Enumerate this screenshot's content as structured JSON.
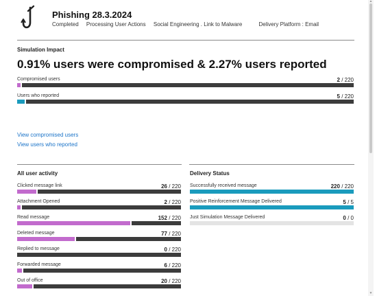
{
  "header": {
    "title": "Phishing 28.3.2024",
    "meta": [
      "Completed",
      "Processing User Actions",
      "Social Engineering . Link to Malware",
      "Delivery Platform : Email"
    ]
  },
  "impact": {
    "section_title": "Simulation Impact",
    "headline": "0.91% users were compromised & 2.27% users reported",
    "rows": [
      {
        "label": "Compromised users",
        "value": 2,
        "total": 220,
        "count": "2 / 220",
        "color": "#c26bcd"
      },
      {
        "label": "Users who reported",
        "value": 5,
        "total": 220,
        "count": "5 / 220",
        "color": "#1a9bbd"
      }
    ],
    "links": [
      "View compromised users",
      "View users who reported"
    ]
  },
  "activity": {
    "section_title": "All user activity",
    "rows": [
      {
        "label": "Clicked message link",
        "value": 26,
        "total": 220,
        "count": "26 / 220",
        "color": "#c26bcd"
      },
      {
        "label": "Attachment Opened",
        "value": 2,
        "total": 220,
        "count": "2 / 220",
        "color": "#c26bcd"
      },
      {
        "label": "Read message",
        "value": 152,
        "total": 220,
        "count": "152 / 220",
        "color": "#c26bcd"
      },
      {
        "label": "Deleted message",
        "value": 77,
        "total": 220,
        "count": "77 / 220",
        "color": "#c26bcd"
      },
      {
        "label": "Replied to message",
        "value": 0,
        "total": 220,
        "count": "0 / 220",
        "color": "#c26bcd"
      },
      {
        "label": "Forwarded message",
        "value": 6,
        "total": 220,
        "count": "6 / 220",
        "color": "#c26bcd"
      },
      {
        "label": "Out of office",
        "value": 20,
        "total": 220,
        "count": "20 / 220",
        "color": "#c26bcd"
      }
    ]
  },
  "delivery": {
    "section_title": "Delivery Status",
    "rows": [
      {
        "label": "Successfully received message",
        "value": 220,
        "total": 220,
        "count": "220 / 220",
        "color": "#1a9bbd"
      },
      {
        "label": "Positive Reinforcement Message Delivered",
        "value": 5,
        "total": 5,
        "count": "5 / 5",
        "color": "#1a9bbd"
      },
      {
        "label": "Just Simulation Message Delivered",
        "value": 0,
        "total": 0,
        "count": "0 / 0",
        "color": "#1a9bbd"
      }
    ]
  },
  "colors": {
    "bar_rest": "#3c3c3c",
    "bar_empty": "#e4e4e4",
    "link": "#1a73c8"
  },
  "icons": {
    "header": "fishing-hook-icon"
  }
}
